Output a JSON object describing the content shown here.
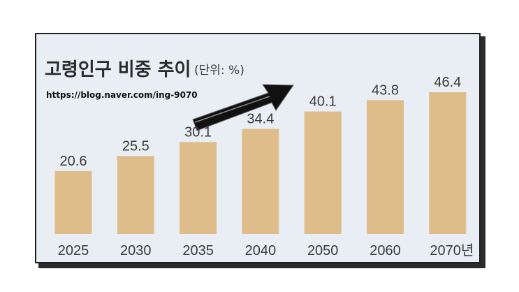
{
  "header": {
    "title": "고령인구 비중 추이",
    "unit": "(단위: %)",
    "url": "https://blog.naver.com/ing-9070"
  },
  "colors": {
    "bar": "#dfbd8a",
    "background": "#e8eef4",
    "arrow": "#111111"
  },
  "chart_data": {
    "type": "bar",
    "title": "고령인구 비중 추이",
    "xlabel": "",
    "ylabel": "",
    "categories": [
      "2025",
      "2030",
      "2035",
      "2040",
      "2050",
      "2060",
      "2070년"
    ],
    "values": [
      20.6,
      25.5,
      30.1,
      34.4,
      40.1,
      43.8,
      46.4
    ],
    "value_labels": [
      "20.6",
      "25.5",
      "30.1",
      "34.4",
      "40.1",
      "43.8",
      "46.4"
    ],
    "ylim": [
      0,
      46.4
    ],
    "grid": false,
    "legend": "none",
    "unit": "%"
  }
}
